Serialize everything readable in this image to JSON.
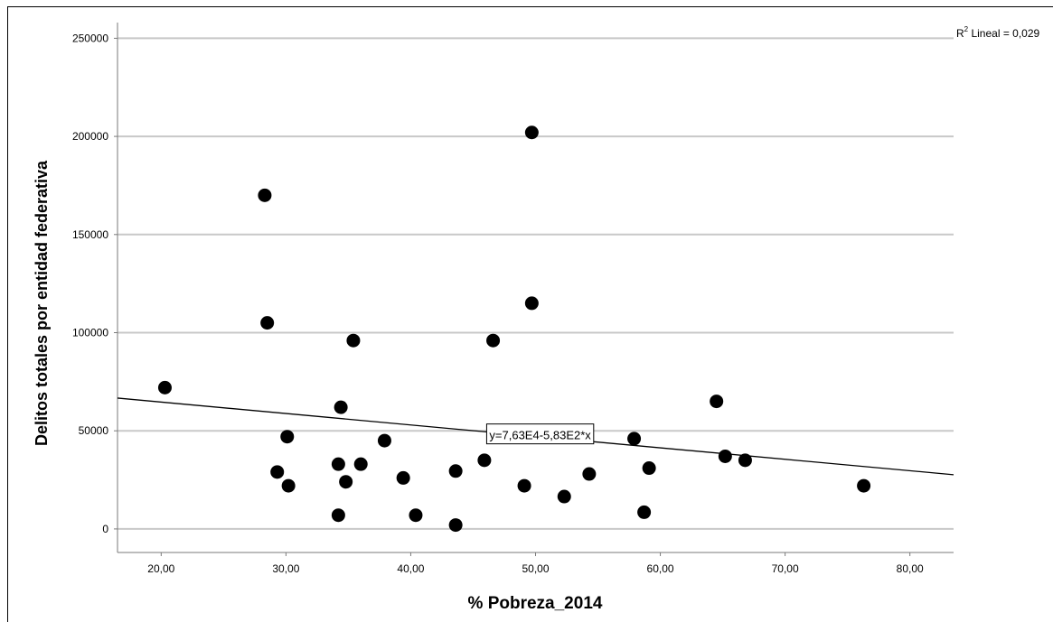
{
  "chart_data": {
    "type": "scatter",
    "xlabel": "% Pobreza_2014",
    "ylabel": "Delitos totales por entidad federativa",
    "xlim": [
      16.5,
      83.5
    ],
    "ylim": [
      -12000,
      258000
    ],
    "x_ticks": [
      20,
      30,
      40,
      50,
      60,
      70,
      80
    ],
    "x_tick_labels": [
      "20,00",
      "30,00",
      "40,00",
      "50,00",
      "60,00",
      "70,00",
      "80,00"
    ],
    "y_ticks": [
      0,
      50000,
      100000,
      150000,
      200000,
      250000
    ],
    "y_tick_labels": [
      "0",
      "50000",
      "100000",
      "150000",
      "200000",
      "250000"
    ],
    "grid": "horizontal",
    "points": [
      {
        "x": 20.3,
        "y": 72000
      },
      {
        "x": 28.3,
        "y": 170000
      },
      {
        "x": 28.5,
        "y": 105000
      },
      {
        "x": 29.3,
        "y": 29000
      },
      {
        "x": 30.1,
        "y": 47000
      },
      {
        "x": 30.2,
        "y": 22000
      },
      {
        "x": 34.2,
        "y": 33000
      },
      {
        "x": 34.2,
        "y": 7000
      },
      {
        "x": 34.4,
        "y": 62000
      },
      {
        "x": 34.8,
        "y": 24000
      },
      {
        "x": 35.4,
        "y": 96000
      },
      {
        "x": 36.0,
        "y": 33000
      },
      {
        "x": 37.9,
        "y": 45000
      },
      {
        "x": 39.4,
        "y": 26000
      },
      {
        "x": 40.4,
        "y": 7000
      },
      {
        "x": 43.6,
        "y": 29500
      },
      {
        "x": 43.6,
        "y": 2000
      },
      {
        "x": 45.9,
        "y": 35000
      },
      {
        "x": 46.6,
        "y": 96000
      },
      {
        "x": 49.1,
        "y": 22000
      },
      {
        "x": 49.7,
        "y": 202000
      },
      {
        "x": 49.7,
        "y": 115000
      },
      {
        "x": 52.3,
        "y": 16500
      },
      {
        "x": 54.3,
        "y": 28000
      },
      {
        "x": 57.9,
        "y": 46000
      },
      {
        "x": 58.7,
        "y": 8500
      },
      {
        "x": 59.1,
        "y": 31000
      },
      {
        "x": 64.5,
        "y": 65000
      },
      {
        "x": 65.2,
        "y": 37000
      },
      {
        "x": 66.8,
        "y": 35000
      },
      {
        "x": 76.3,
        "y": 22000
      }
    ],
    "fit_line": {
      "intercept": 76300,
      "slope": -583
    },
    "fit_label": "y=7,63E4-5,83E2*x",
    "fit_label_anchor": {
      "x": 46.3,
      "y": 47500
    },
    "r2_prefix": "R",
    "r2_sup": "2",
    "r2_text": " Lineal = 0,029",
    "colors": {
      "point": "#000000",
      "grid": "#c8c8c8",
      "line": "#000000",
      "axis": "#7a7a7a"
    }
  }
}
